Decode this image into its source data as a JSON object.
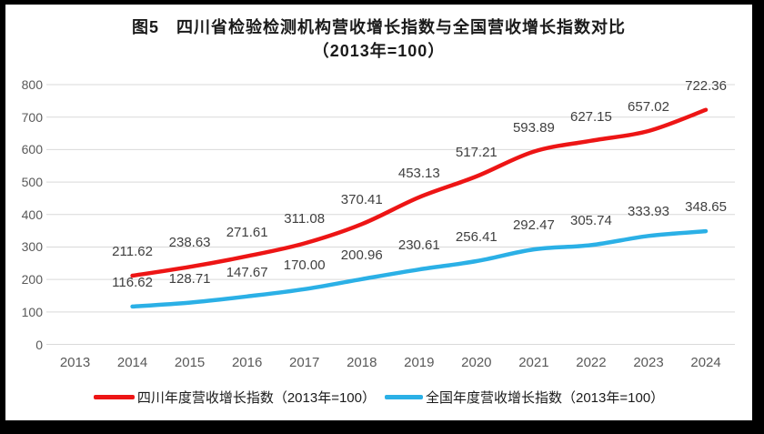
{
  "frame": {
    "background": "#000000"
  },
  "title": {
    "line1": "图5　四川省检验检测机构营收增长指数与全国营收增长指数对比",
    "line2": "（2013年=100）"
  },
  "chart_data": {
    "type": "line",
    "categories": [
      "2013",
      "2014",
      "2015",
      "2016",
      "2017",
      "2018",
      "2019",
      "2020",
      "2021",
      "2022",
      "2023",
      "2024"
    ],
    "series": [
      {
        "name": "四川年度营收增长指数（2013年=100）",
        "color": "#ed1515",
        "stroke_width": 4.5,
        "values": [
          null,
          211.62,
          238.63,
          271.61,
          311.08,
          370.41,
          453.13,
          517.21,
          593.89,
          627.15,
          657.02,
          722.36
        ]
      },
      {
        "name": "全国年度营收增长指数（2013年=100）",
        "color": "#2bb0e6",
        "stroke_width": 4.5,
        "values": [
          null,
          116.62,
          128.71,
          147.67,
          170.0,
          200.96,
          230.61,
          256.41,
          292.47,
          305.74,
          333.93,
          348.65
        ]
      }
    ],
    "ylim": [
      0,
      800
    ],
    "yticks": [
      0,
      100,
      200,
      300,
      400,
      500,
      600,
      700,
      800
    ],
    "grid": "horizontal-only",
    "gridline_color": "#d9d9d9",
    "axis_text_color": "#595959",
    "data_label_color": "#404040",
    "data_label_decimals": 2,
    "line_style": "smooth",
    "legend_position": "bottom"
  }
}
